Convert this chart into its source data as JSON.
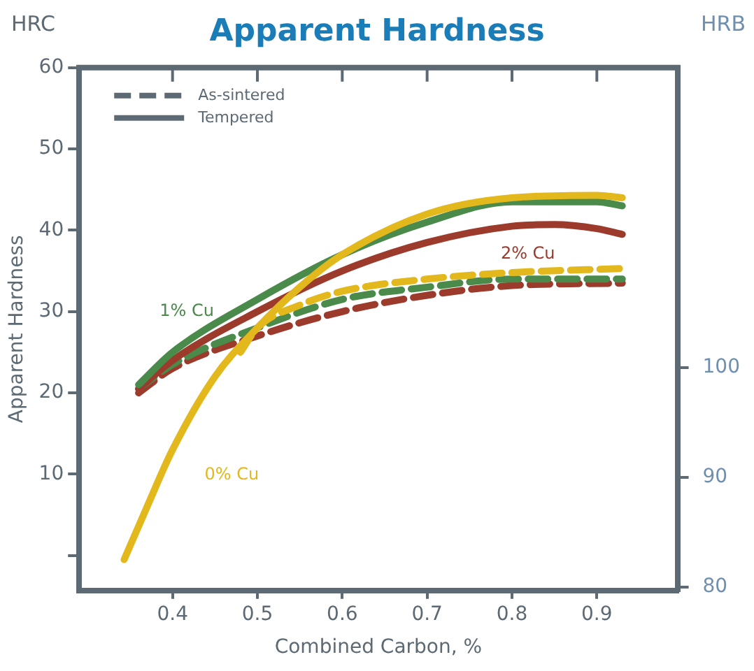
{
  "chart_data": {
    "type": "line",
    "title": "Apparent Hardness",
    "xlabel": "Combined Carbon, %",
    "ylabel": "Apparent Hardness",
    "y2label": "HRB",
    "annotations": [
      "HRC",
      "As-sintered",
      "Tempered"
    ],
    "series": [
      {
        "name": "0% Cu",
        "color": "#e3b81c",
        "line_style": "solid",
        "x": [
          0.343,
          0.37,
          0.4,
          0.45,
          0.5,
          0.55,
          0.6,
          0.7,
          0.8,
          0.9,
          0.93
        ],
        "values": [
          -0.5,
          6,
          13,
          22,
          28,
          33,
          37,
          42,
          44,
          44.3,
          44
        ]
      },
      {
        "name": "1% Cu",
        "color": "#4a8a4a",
        "line_style": "solid",
        "x": [
          0.36,
          0.4,
          0.5,
          0.6,
          0.7,
          0.8,
          0.9,
          0.93
        ],
        "values": [
          21,
          25,
          31.5,
          37,
          41,
          43.5,
          43.5,
          43
        ]
      },
      {
        "name": "2% Cu",
        "color": "#9c3a2c",
        "line_style": "solid",
        "x": [
          0.36,
          0.4,
          0.5,
          0.6,
          0.7,
          0.8,
          0.85,
          0.9,
          0.93
        ],
        "values": [
          20.5,
          24,
          30,
          35,
          38.5,
          40.5,
          40.7,
          40.2,
          39.5
        ]
      },
      {
        "color": "#e3b81c",
        "line_style": "dashed",
        "x": [
          0.48,
          0.5,
          0.55,
          0.6,
          0.7,
          0.8,
          0.93
        ],
        "values": [
          25,
          28,
          30.8,
          32.5,
          34,
          34.8,
          35.3
        ]
      },
      {
        "color": "#4a8a4a",
        "line_style": "dashed",
        "x": [
          0.36,
          0.4,
          0.5,
          0.6,
          0.7,
          0.8,
          0.93
        ],
        "values": [
          20.5,
          23.5,
          28,
          31.5,
          33,
          34,
          34
        ]
      },
      {
        "color": "#9c3a2c",
        "line_style": "dashed",
        "x": [
          0.36,
          0.4,
          0.5,
          0.6,
          0.7,
          0.8,
          0.93
        ],
        "values": [
          20,
          23,
          27,
          30,
          32,
          33.2,
          33.5
        ]
      }
    ],
    "xlim": [
      0.29,
      0.995
    ],
    "xticks": [
      0.4,
      0.5,
      0.6,
      0.7,
      0.8,
      0.9
    ],
    "ylim": [
      -4.3,
      60
    ],
    "yticks": [
      {
        "value": 0,
        "label": null
      },
      10,
      20,
      30,
      40,
      50,
      60
    ],
    "y2lim": [
      79.7,
      127.3
    ],
    "y2ticks": [
      80,
      90,
      100
    ],
    "grid": false,
    "marker": "none"
  }
}
